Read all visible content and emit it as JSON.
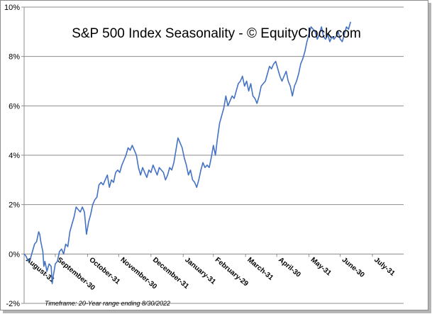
{
  "colors": {
    "line": "#4472c4",
    "grid": "#8c8c8c",
    "axis": "#8c8c8c"
  },
  "chart_data": {
    "type": "line",
    "title": "S&P 500 Index Seasonality - © EquityClock.com",
    "footnote": "Timeframe: 20-Year range ending 8/30/2022",
    "xlabel": "",
    "ylabel": "",
    "ylim": [
      -2,
      10
    ],
    "y_ticks": [
      -2,
      0,
      2,
      4,
      6,
      8,
      10
    ],
    "y_tick_labels": [
      "-2%",
      "0%",
      "2%",
      "4%",
      "6%",
      "8%",
      "10%"
    ],
    "x_range": [
      0,
      365
    ],
    "x_ticks": [
      {
        "label": "August-31",
        "day": 0
      },
      {
        "label": "September-30",
        "day": 30
      },
      {
        "label": "October-31",
        "day": 61
      },
      {
        "label": "November-30",
        "day": 91
      },
      {
        "label": "December-31",
        "day": 122
      },
      {
        "label": "January-31",
        "day": 153
      },
      {
        "label": "February-29",
        "day": 182
      },
      {
        "label": "March-31",
        "day": 213
      },
      {
        "label": "April-30",
        "day": 243
      },
      {
        "label": "May-31",
        "day": 274
      },
      {
        "label": "June-30",
        "day": 304
      },
      {
        "label": "July-31",
        "day": 335
      }
    ],
    "series": [
      {
        "name": "S&P 500 Index Seasonality",
        "points": [
          [
            0,
            0.0
          ],
          [
            2,
            -0.1
          ],
          [
            4,
            -0.3
          ],
          [
            6,
            -0.2
          ],
          [
            8,
            0.1
          ],
          [
            10,
            0.4
          ],
          [
            12,
            0.5
          ],
          [
            14,
            0.9
          ],
          [
            15,
            0.8
          ],
          [
            16,
            0.5
          ],
          [
            18,
            0.1
          ],
          [
            19,
            -0.5
          ],
          [
            20,
            -0.3
          ],
          [
            22,
            -0.7
          ],
          [
            24,
            -0.4
          ],
          [
            26,
            -0.5
          ],
          [
            27,
            -1.2
          ],
          [
            28,
            -0.9
          ],
          [
            30,
            -0.4
          ],
          [
            32,
            -0.3
          ],
          [
            34,
            0.1
          ],
          [
            36,
            0.2
          ],
          [
            38,
            0.0
          ],
          [
            40,
            0.4
          ],
          [
            42,
            0.3
          ],
          [
            44,
            0.9
          ],
          [
            46,
            1.2
          ],
          [
            48,
            1.5
          ],
          [
            50,
            1.9
          ],
          [
            52,
            1.8
          ],
          [
            54,
            1.7
          ],
          [
            56,
            1.9
          ],
          [
            58,
            1.7
          ],
          [
            60,
            0.8
          ],
          [
            62,
            1.3
          ],
          [
            64,
            1.6
          ],
          [
            66,
            2.0
          ],
          [
            68,
            2.2
          ],
          [
            70,
            2.3
          ],
          [
            72,
            2.8
          ],
          [
            74,
            2.9
          ],
          [
            76,
            2.8
          ],
          [
            78,
            3.0
          ],
          [
            80,
            3.2
          ],
          [
            82,
            2.7
          ],
          [
            84,
            3.0
          ],
          [
            86,
            2.9
          ],
          [
            88,
            3.3
          ],
          [
            90,
            3.4
          ],
          [
            92,
            3.3
          ],
          [
            94,
            3.6
          ],
          [
            96,
            3.8
          ],
          [
            98,
            4.0
          ],
          [
            100,
            4.3
          ],
          [
            102,
            4.2
          ],
          [
            104,
            4.4
          ],
          [
            106,
            4.2
          ],
          [
            108,
            4.0
          ],
          [
            110,
            3.5
          ],
          [
            112,
            3.2
          ],
          [
            114,
            3.5
          ],
          [
            116,
            3.3
          ],
          [
            118,
            3.1
          ],
          [
            120,
            3.4
          ],
          [
            122,
            3.3
          ],
          [
            124,
            3.6
          ],
          [
            126,
            3.4
          ],
          [
            128,
            3.2
          ],
          [
            130,
            3.5
          ],
          [
            132,
            3.4
          ],
          [
            134,
            3.3
          ],
          [
            136,
            3.0
          ],
          [
            138,
            3.2
          ],
          [
            140,
            3.5
          ],
          [
            142,
            3.4
          ],
          [
            144,
            3.7
          ],
          [
            146,
            4.2
          ],
          [
            148,
            4.7
          ],
          [
            150,
            4.5
          ],
          [
            152,
            4.3
          ],
          [
            154,
            3.9
          ],
          [
            156,
            3.6
          ],
          [
            158,
            3.2
          ],
          [
            160,
            3.4
          ],
          [
            162,
            3.0
          ],
          [
            164,
            2.9
          ],
          [
            166,
            2.7
          ],
          [
            168,
            3.0
          ],
          [
            170,
            3.4
          ],
          [
            172,
            3.7
          ],
          [
            174,
            3.5
          ],
          [
            176,
            3.6
          ],
          [
            178,
            3.5
          ],
          [
            180,
            3.9
          ],
          [
            182,
            4.4
          ],
          [
            184,
            4.0
          ],
          [
            186,
            4.7
          ],
          [
            188,
            5.3
          ],
          [
            190,
            5.6
          ],
          [
            192,
            5.9
          ],
          [
            194,
            6.4
          ],
          [
            196,
            6.0
          ],
          [
            198,
            6.2
          ],
          [
            200,
            6.4
          ],
          [
            202,
            6.3
          ],
          [
            204,
            6.6
          ],
          [
            206,
            6.9
          ],
          [
            208,
            7.0
          ],
          [
            210,
            7.2
          ],
          [
            212,
            6.8
          ],
          [
            214,
            7.0
          ],
          [
            216,
            6.6
          ],
          [
            218,
            6.9
          ],
          [
            220,
            6.4
          ],
          [
            222,
            6.3
          ],
          [
            224,
            6.1
          ],
          [
            226,
            6.4
          ],
          [
            228,
            6.8
          ],
          [
            230,
            6.9
          ],
          [
            232,
            7.0
          ],
          [
            234,
            7.3
          ],
          [
            236,
            7.6
          ],
          [
            238,
            7.5
          ],
          [
            240,
            7.7
          ],
          [
            242,
            7.8
          ],
          [
            244,
            7.5
          ],
          [
            246,
            7.2
          ],
          [
            248,
            7.0
          ],
          [
            250,
            7.2
          ],
          [
            252,
            7.4
          ],
          [
            254,
            7.0
          ],
          [
            256,
            6.8
          ],
          [
            258,
            6.4
          ],
          [
            260,
            6.8
          ],
          [
            262,
            7.0
          ],
          [
            264,
            7.3
          ],
          [
            266,
            7.7
          ],
          [
            268,
            7.9
          ],
          [
            270,
            8.2
          ],
          [
            272,
            8.6
          ],
          [
            274,
            8.9
          ],
          [
            276,
            9.2
          ],
          [
            278,
            9.1
          ],
          [
            280,
            9.0
          ],
          [
            282,
            8.7
          ],
          [
            284,
            8.9
          ],
          [
            286,
            9.2
          ],
          [
            288,
            8.8
          ],
          [
            290,
            8.7
          ],
          [
            292,
            8.9
          ],
          [
            294,
            8.6
          ],
          [
            296,
            8.8
          ],
          [
            298,
            8.7
          ],
          [
            300,
            8.8
          ],
          [
            302,
            9.0
          ],
          [
            304,
            8.7
          ],
          [
            306,
            8.6
          ],
          [
            308,
            8.9
          ],
          [
            310,
            9.2
          ],
          [
            312,
            9.1
          ],
          [
            314,
            9.4
          ]
        ]
      }
    ]
  }
}
